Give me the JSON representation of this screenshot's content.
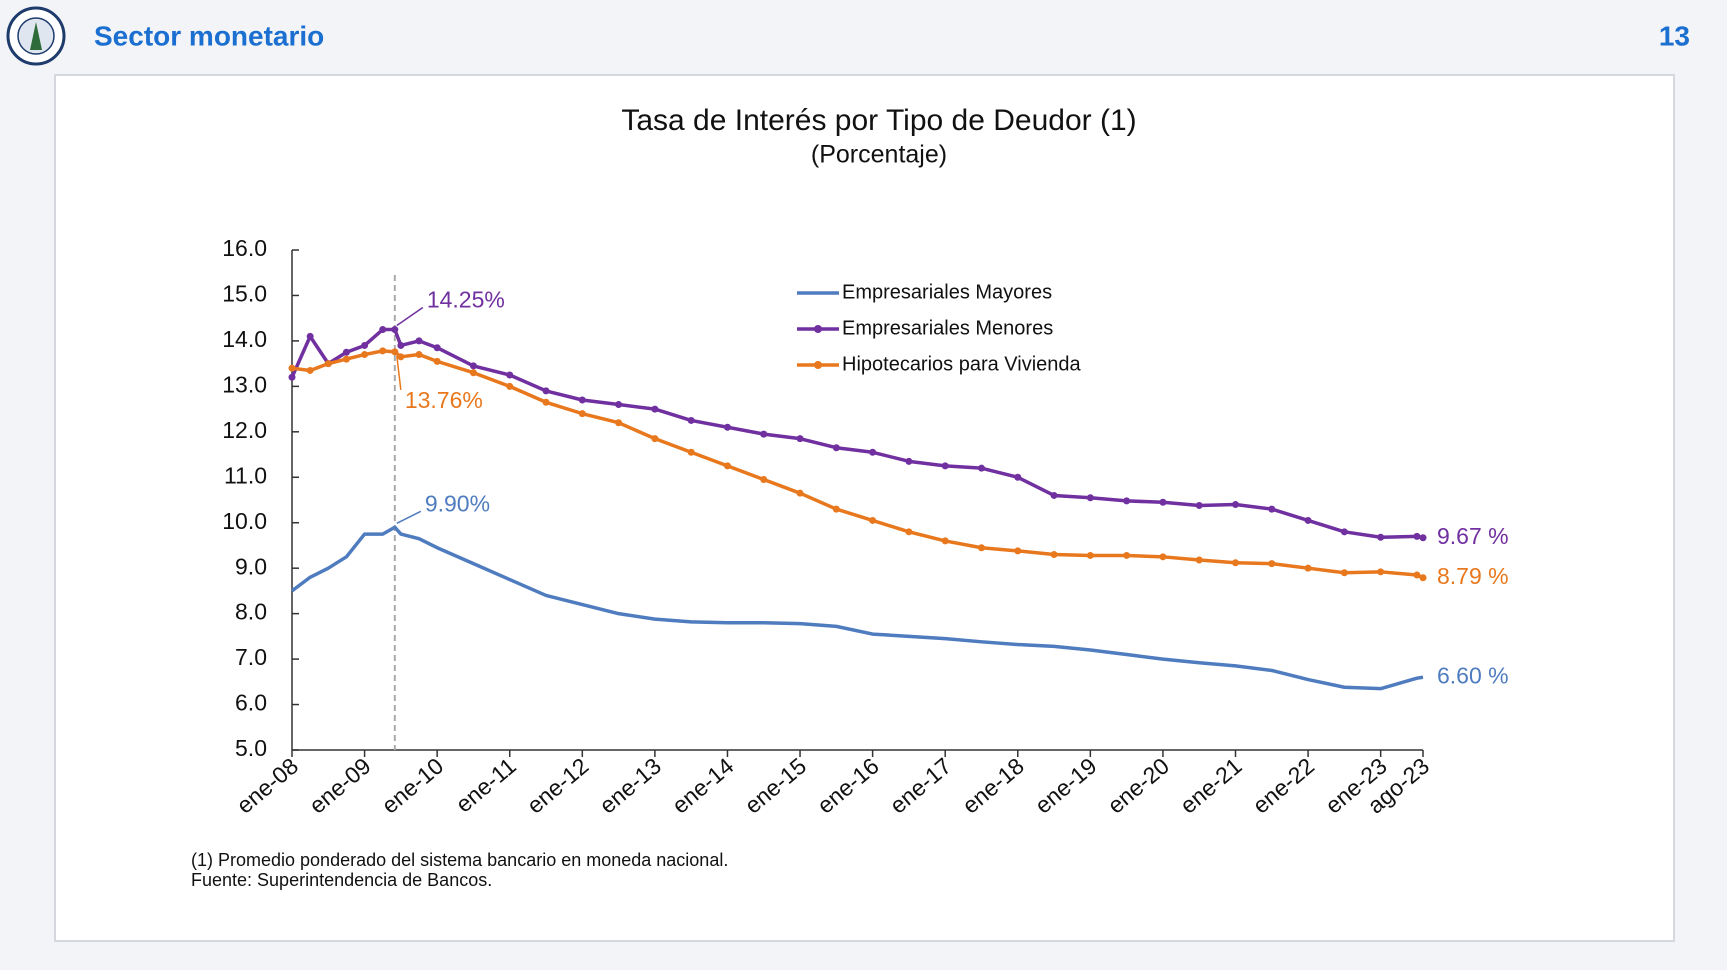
{
  "header": {
    "title": "Sector monetario",
    "page": "13"
  },
  "chart_data": {
    "type": "line",
    "title": "Tasa de Interés por Tipo de Deudor (1)",
    "subtitle": "(Porcentaje)",
    "notes": [
      "(1) Promedio ponderado del sistema bancario en moneda nacional.",
      "Fuente: Superintendencia de Bancos."
    ],
    "x": [
      0,
      3,
      6,
      9,
      12,
      15,
      17,
      18,
      21,
      24,
      30,
      36,
      42,
      48,
      54,
      60,
      66,
      72,
      78,
      84,
      90,
      96,
      102,
      108,
      114,
      120,
      126,
      132,
      138,
      144,
      150,
      156,
      162,
      168,
      174,
      180,
      186,
      187
    ],
    "xlim": [
      0,
      187
    ],
    "xticks": [
      {
        "value": 0,
        "label": "ene-08"
      },
      {
        "value": 12,
        "label": "ene-09"
      },
      {
        "value": 24,
        "label": "ene-10"
      },
      {
        "value": 36,
        "label": "ene-11"
      },
      {
        "value": 48,
        "label": "ene-12"
      },
      {
        "value": 60,
        "label": "ene-13"
      },
      {
        "value": 72,
        "label": "ene-14"
      },
      {
        "value": 84,
        "label": "ene-15"
      },
      {
        "value": 96,
        "label": "ene-16"
      },
      {
        "value": 108,
        "label": "ene-17"
      },
      {
        "value": 120,
        "label": "ene-18"
      },
      {
        "value": 132,
        "label": "ene-19"
      },
      {
        "value": 144,
        "label": "ene-20"
      },
      {
        "value": 156,
        "label": "ene-21"
      },
      {
        "value": 168,
        "label": "ene-22"
      },
      {
        "value": 180,
        "label": "ene-23"
      },
      {
        "value": 187,
        "label": "ago-23"
      }
    ],
    "ylim": [
      5,
      16
    ],
    "yticks": [
      {
        "value": 5,
        "label": "5.0"
      },
      {
        "value": 6,
        "label": "6.0"
      },
      {
        "value": 7,
        "label": "7.0"
      },
      {
        "value": 8,
        "label": "8.0"
      },
      {
        "value": 9,
        "label": "9.0"
      },
      {
        "value": 10,
        "label": "10.0"
      },
      {
        "value": 11,
        "label": "11.0"
      },
      {
        "value": 12,
        "label": "12.0"
      },
      {
        "value": 13,
        "label": "13.0"
      },
      {
        "value": 14,
        "label": "14.0"
      },
      {
        "value": 15,
        "label": "15.0"
      },
      {
        "value": 16,
        "label": "16.0"
      }
    ],
    "vline": 17,
    "series": [
      {
        "name": "Empresariales Mayores",
        "color": "#4f7cbf",
        "markers": false,
        "values": [
          8.5,
          8.8,
          9.0,
          9.25,
          9.75,
          9.75,
          9.9,
          9.75,
          9.65,
          9.45,
          9.1,
          8.75,
          8.4,
          8.2,
          8.0,
          7.88,
          7.82,
          7.8,
          7.8,
          7.78,
          7.72,
          7.55,
          7.5,
          7.45,
          7.38,
          7.32,
          7.28,
          7.2,
          7.1,
          7.0,
          6.92,
          6.85,
          6.75,
          6.55,
          6.38,
          6.35,
          6.58,
          6.6
        ],
        "value_labels": [
          null,
          null,
          null,
          null,
          null,
          null,
          "9.90%",
          null,
          null,
          null,
          null,
          null,
          null,
          null,
          null,
          null,
          null,
          null,
          null,
          null,
          null,
          null,
          null,
          null,
          null,
          null,
          null,
          null,
          null,
          null,
          null,
          null,
          null,
          null,
          null,
          null,
          null,
          "6.60 %"
        ]
      },
      {
        "name": "Empresariales Menores",
        "color": "#7030a0",
        "markers": true,
        "values": [
          13.2,
          14.1,
          13.5,
          13.75,
          13.9,
          14.25,
          14.25,
          13.9,
          14.0,
          13.85,
          13.45,
          13.25,
          12.9,
          12.7,
          12.6,
          12.5,
          12.25,
          12.1,
          11.95,
          11.85,
          11.65,
          11.55,
          11.35,
          11.25,
          11.2,
          11.0,
          10.6,
          10.55,
          10.48,
          10.45,
          10.38,
          10.4,
          10.3,
          10.05,
          9.8,
          9.68,
          9.7,
          9.67
        ],
        "value_labels": [
          null,
          null,
          null,
          null,
          null,
          null,
          "14.25%",
          null,
          null,
          null,
          null,
          null,
          null,
          null,
          null,
          null,
          null,
          null,
          null,
          null,
          null,
          null,
          null,
          null,
          null,
          null,
          null,
          null,
          null,
          null,
          null,
          null,
          null,
          null,
          null,
          null,
          null,
          "9.67 %"
        ]
      },
      {
        "name": "Hipotecarios para Vivienda",
        "color": "#e8781e",
        "markers": true,
        "values": [
          13.4,
          13.35,
          13.5,
          13.6,
          13.7,
          13.78,
          13.76,
          13.65,
          13.7,
          13.55,
          13.3,
          13.0,
          12.65,
          12.4,
          12.2,
          11.85,
          11.55,
          11.25,
          10.95,
          10.65,
          10.3,
          10.05,
          9.8,
          9.6,
          9.45,
          9.38,
          9.3,
          9.28,
          9.28,
          9.25,
          9.18,
          9.12,
          9.1,
          9.0,
          8.9,
          8.92,
          8.85,
          8.79
        ],
        "value_labels": [
          null,
          null,
          null,
          null,
          null,
          null,
          "13.76%",
          null,
          null,
          null,
          null,
          null,
          null,
          null,
          null,
          null,
          null,
          null,
          null,
          null,
          null,
          null,
          null,
          null,
          null,
          null,
          null,
          null,
          null,
          null,
          null,
          null,
          null,
          null,
          null,
          null,
          null,
          "8.79 %"
        ]
      }
    ]
  }
}
